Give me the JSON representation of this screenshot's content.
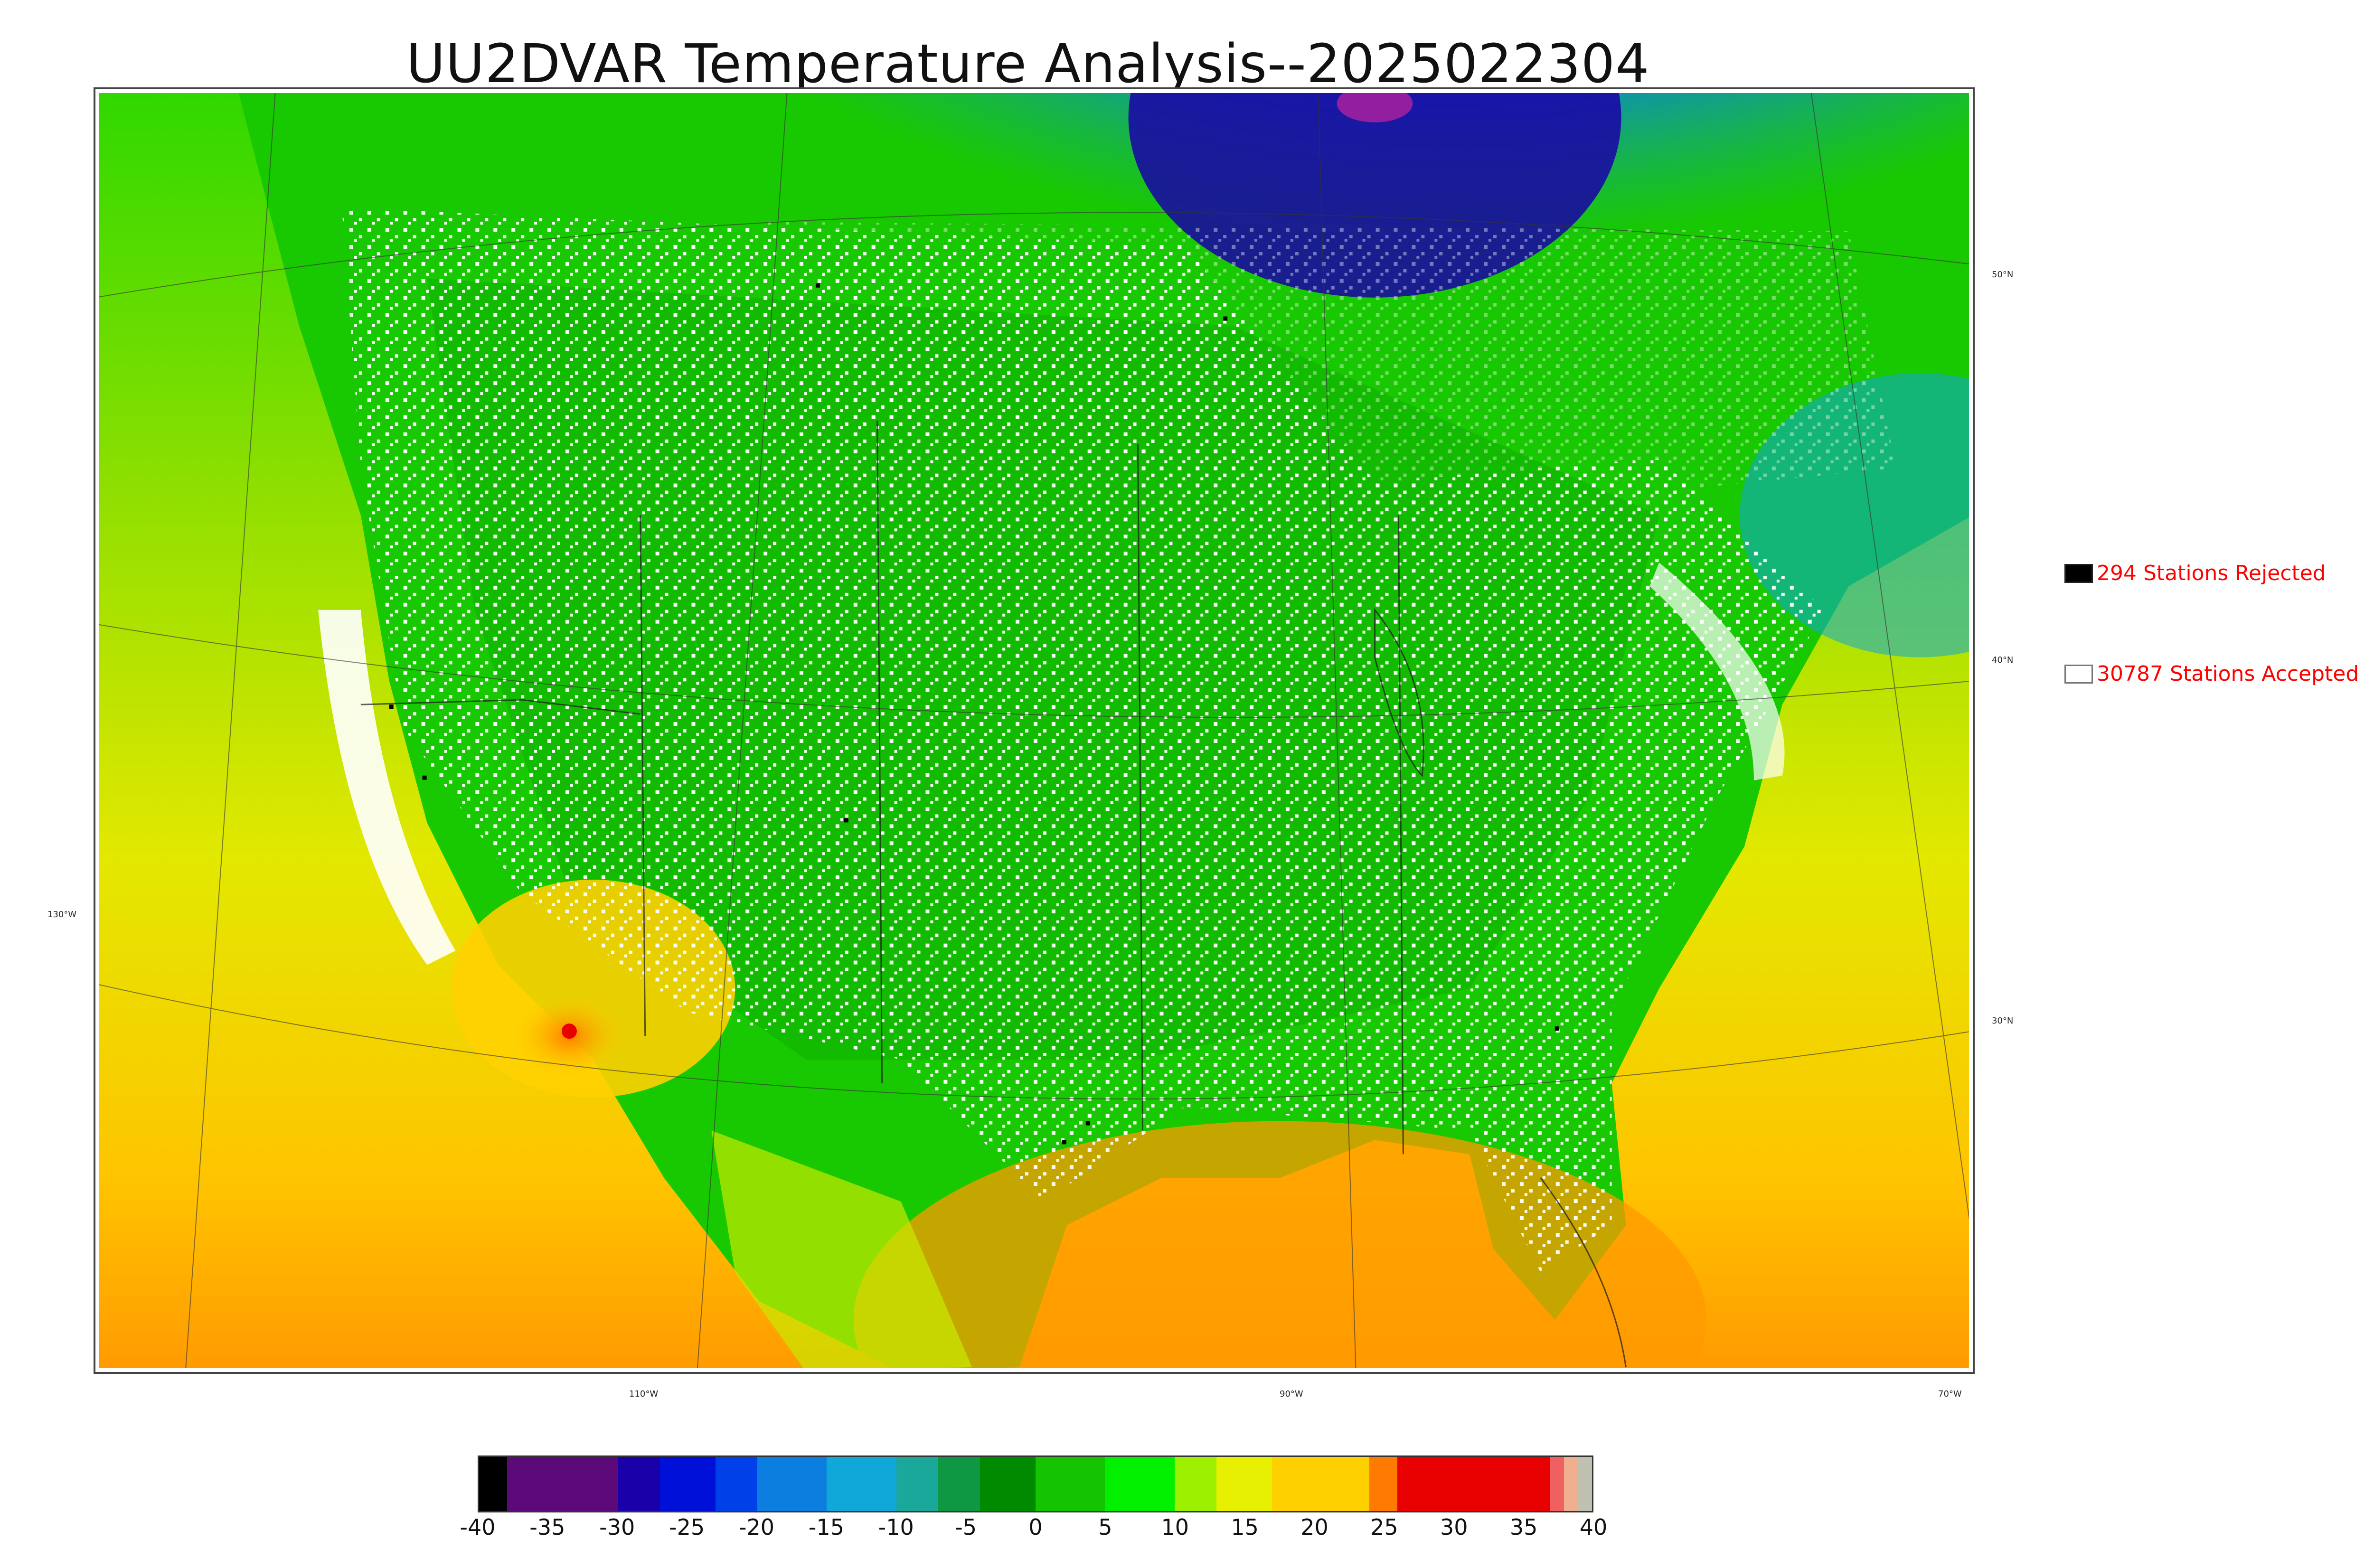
{
  "title": "UU2DVAR Temperature Analysis--2025022304",
  "legend": {
    "rejected": {
      "label": "294 Stations Rejected",
      "color": "#000000"
    },
    "accepted": {
      "label": "30787 Stations Accepted",
      "color": "#ffffff"
    },
    "text_color": "#ff0000"
  },
  "lat_labels": [
    "50°N",
    "40°N",
    "30°N"
  ],
  "lon_labels": [
    "130°W",
    "110°W",
    "90°W",
    "70°W"
  ],
  "colorbar": {
    "ticks": [
      "-40",
      "-35",
      "-30",
      "-25",
      "-20",
      "-15",
      "-10",
      "-5",
      "0",
      "5",
      "10",
      "15",
      "20",
      "25",
      "30",
      "35",
      "40"
    ],
    "range": [
      -40,
      40
    ],
    "colors": [
      {
        "from": -40,
        "to": -38,
        "color": "#000000"
      },
      {
        "from": -38,
        "to": -30,
        "color": "#5c0a7a"
      },
      {
        "from": -30,
        "to": -27,
        "color": "#1a00a8"
      },
      {
        "from": -27,
        "to": -23,
        "color": "#0010d8"
      },
      {
        "from": -23,
        "to": -20,
        "color": "#0040e8"
      },
      {
        "from": -20,
        "to": -15,
        "color": "#0b7ee0"
      },
      {
        "from": -15,
        "to": -10,
        "color": "#10a8d8"
      },
      {
        "from": -10,
        "to": -7,
        "color": "#1aa89a"
      },
      {
        "from": -7,
        "to": -4,
        "color": "#0e9844"
      },
      {
        "from": -4,
        "to": 0,
        "color": "#008a00"
      },
      {
        "from": 0,
        "to": 5,
        "color": "#14c400"
      },
      {
        "from": 5,
        "to": 10,
        "color": "#00f000"
      },
      {
        "from": 10,
        "to": 13,
        "color": "#9cf000"
      },
      {
        "from": 13,
        "to": 17,
        "color": "#e6f000"
      },
      {
        "from": 17,
        "to": 24,
        "color": "#ffd000"
      },
      {
        "from": 24,
        "to": 26,
        "color": "#ff7a00"
      },
      {
        "from": 26,
        "to": 37,
        "color": "#e80000"
      },
      {
        "from": 37,
        "to": 38,
        "color": "#f06060"
      },
      {
        "from": 38,
        "to": 39,
        "color": "#f0b090"
      },
      {
        "from": 39,
        "to": 40,
        "color": "#c0c0b0"
      }
    ]
  },
  "colors": {
    "ocean_warm": "#ffb000",
    "land_mild": "#14c400",
    "cold_canada": "#0b7ee0",
    "very_cold": "#1a00a8",
    "station_accepted": "#ffffff",
    "station_rejected": "#000000"
  }
}
